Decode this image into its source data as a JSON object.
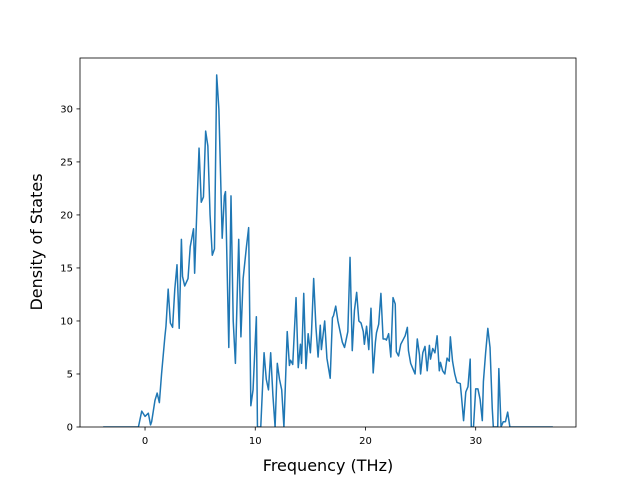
{
  "chart_data": {
    "type": "line",
    "xlabel": "Frequency (THz)",
    "ylabel": "Density of States",
    "color": "#1f77b4",
    "xlim": [
      -5.9,
      39.1
    ],
    "ylim": [
      0,
      34.8
    ],
    "xticks": [
      0,
      10,
      20,
      30
    ],
    "yticks": [
      0,
      5,
      10,
      15,
      20,
      25,
      30
    ],
    "grid": false,
    "x": [
      -3.8,
      -0.6,
      -0.3,
      0.0,
      0.3,
      0.5,
      0.6,
      0.9,
      1.1,
      1.3,
      1.5,
      1.8,
      1.9,
      2.1,
      2.3,
      2.5,
      2.7,
      2.9,
      3.1,
      3.3,
      3.4,
      3.6,
      3.9,
      4.1,
      4.4,
      4.5,
      4.9,
      5.1,
      5.3,
      5.5,
      5.7,
      5.9,
      6.1,
      6.3,
      6.5,
      6.7,
      7.0,
      7.2,
      7.3,
      7.6,
      7.8,
      8.0,
      8.2,
      8.3,
      8.5,
      8.7,
      8.9,
      9.2,
      9.4,
      9.6,
      9.8,
      10.1,
      10.2,
      10.5,
      10.8,
      11.0,
      11.2,
      11.4,
      11.6,
      11.8,
      12.0,
      12.2,
      12.4,
      12.6,
      12.9,
      13.1,
      13.2,
      13.4,
      13.7,
      13.9,
      14.1,
      14.2,
      14.4,
      14.6,
      14.8,
      15.0,
      15.1,
      15.3,
      15.5,
      15.7,
      15.9,
      16.0,
      16.3,
      16.5,
      16.8,
      17.0,
      17.1,
      17.3,
      17.5,
      17.7,
      17.9,
      18.1,
      18.2,
      18.4,
      18.6,
      18.8,
      19.0,
      19.2,
      19.4,
      19.6,
      19.8,
      19.9,
      20.1,
      20.3,
      20.5,
      20.7,
      20.9,
      21.0,
      21.2,
      21.4,
      21.6,
      21.8,
      21.9,
      22.1,
      22.3,
      22.5,
      22.7,
      22.8,
      23.0,
      23.2,
      23.4,
      23.6,
      23.8,
      23.9,
      24.1,
      24.3,
      24.5,
      24.7,
      24.9,
      25.0,
      25.2,
      25.4,
      25.6,
      25.8,
      25.9,
      26.1,
      26.3,
      26.5,
      26.7,
      26.8,
      27.0,
      27.2,
      27.4,
      27.6,
      27.7,
      27.9,
      28.1,
      28.3,
      28.6,
      28.7,
      28.9,
      29.1,
      29.3,
      29.5,
      29.6,
      29.8,
      30.0,
      30.2,
      30.4,
      30.6,
      30.7,
      30.9,
      31.1,
      31.3,
      31.5,
      31.6,
      31.8,
      32.0,
      32.1,
      32.3,
      32.5,
      32.7,
      32.9,
      33.1,
      37.0
    ],
    "values": [
      0,
      0,
      1.5,
      1.0,
      1.3,
      0.2,
      0.5,
      2.5,
      3.2,
      2.3,
      5,
      8.5,
      9.5,
      13,
      9.8,
      9.4,
      13,
      15.3,
      9.3,
      17.7,
      14.2,
      13.3,
      14,
      17,
      18.7,
      14.5,
      26.3,
      21.2,
      21.7,
      27.9,
      26.5,
      20,
      16.2,
      16.8,
      33.2,
      30,
      17.8,
      21.8,
      22.2,
      7.5,
      21.8,
      10,
      6,
      10,
      17.7,
      8.5,
      14,
      17,
      18.8,
      2,
      3.5,
      10.4,
      0,
      0,
      7,
      4.5,
      3.5,
      7,
      3,
      0,
      6,
      4.5,
      3.5,
      0,
      9,
      5.8,
      6.3,
      5.9,
      12.2,
      5.6,
      7.8,
      6,
      12.6,
      5.5,
      8.8,
      7,
      8.8,
      14,
      9.5,
      6.6,
      9.6,
      7.3,
      10,
      6.5,
      4.6,
      10.3,
      10.5,
      11.4,
      10,
      9,
      8,
      7.5,
      8,
      9,
      16,
      7.2,
      11,
      12.7,
      10,
      9.8,
      9,
      7.8,
      9.5,
      7.3,
      11.2,
      5.1,
      8,
      8.9,
      9.7,
      12.6,
      8.3,
      8.3,
      8.2,
      8.8,
      6.6,
      12.2,
      11.6,
      7.1,
      6.7,
      7.8,
      8.2,
      8.6,
      9.4,
      7.2,
      6,
      5.5,
      5,
      8.3,
      6.8,
      5,
      7,
      7.6,
      5.3,
      7.7,
      6.4,
      7.4,
      7,
      8.6,
      5.3,
      6.1,
      5.3,
      5,
      6.5,
      6.2,
      8.5,
      6.2,
      5,
      4.2,
      4.1,
      3,
      0.6,
      3.3,
      3.8,
      6.4,
      0,
      0,
      3.6,
      3.6,
      2.6,
      0.6,
      4.3,
      7,
      9.3,
      7.5,
      1.8,
      0,
      0,
      0,
      5.5,
      0,
      0.5,
      0.5,
      1.4,
      0,
      0
    ]
  }
}
